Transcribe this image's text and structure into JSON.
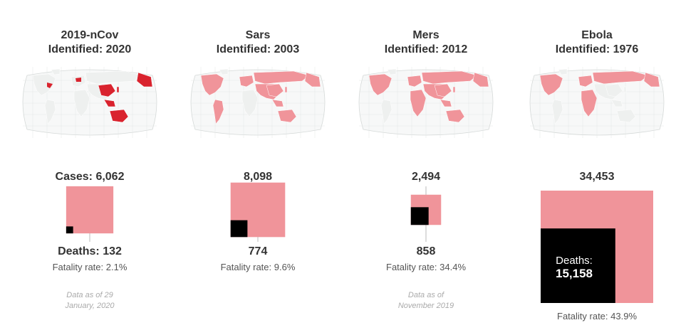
{
  "colors": {
    "cases": "#f0949a",
    "deaths": "#000000",
    "map_highlight_strong": "#d9232e",
    "map_highlight_light": "#f0949a",
    "map_land": "#eef0ef",
    "leader_line": "#bbbbbb"
  },
  "panels": [
    {
      "name": "2019-nCov",
      "identified": "Identified: 2020",
      "cases_text": "Cases: 6,062",
      "deaths_text": "Deaths: 132",
      "fatality_text": "Fatality rate: 2.1%",
      "note_lines": [
        "Data as of 29",
        "January, 2020"
      ],
      "map_style": "strong"
    },
    {
      "name": "Sars",
      "identified": "Identified: 2003",
      "cases_text": "8,098",
      "deaths_text": "774",
      "fatality_text": "Fatality rate: 9.6%",
      "note_lines": [],
      "map_style": "light"
    },
    {
      "name": "Mers",
      "identified": "Identified: 2012",
      "cases_text": "2,494",
      "deaths_text": "858",
      "fatality_text": "Fatality rate: 34.4%",
      "note_lines": [
        "Data as of",
        "November 2019"
      ],
      "map_style": "light"
    },
    {
      "name": "Ebola",
      "identified": "Identified: 1976",
      "cases_text": "34,453",
      "deaths_label": "Deaths:",
      "deaths_text": "15,158",
      "fatality_text": "Fatality rate: 43.9%",
      "note_lines": [],
      "map_style": "light"
    }
  ],
  "chart_data": {
    "type": "proportional-area squares",
    "categories": [
      "2019-nCov",
      "Sars",
      "Mers",
      "Ebola"
    ],
    "series": [
      {
        "name": "Cases",
        "values": [
          6062,
          8098,
          2494,
          34453
        ]
      },
      {
        "name": "Deaths",
        "values": [
          132,
          774,
          858,
          15158
        ]
      }
    ],
    "fatality_rate_pct": [
      2.1,
      9.6,
      34.4,
      43.9
    ]
  }
}
